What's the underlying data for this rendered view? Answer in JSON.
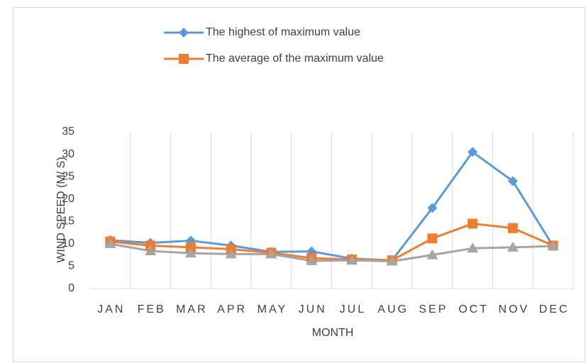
{
  "chart_data": {
    "type": "line",
    "x_label": "MONTH",
    "y_label": "WIND SPEED (M/ S)",
    "categories": [
      "JAN",
      "FEB",
      "MAR",
      "APR",
      "MAY",
      "JUN",
      "JUL",
      "AUG",
      "SEP",
      "OCT",
      "NOV",
      "DEC"
    ],
    "series": [
      {
        "name": "The highest of maximum value",
        "color": "#5b9bd5",
        "marker": "diamond",
        "values": [
          10.8,
          10.2,
          10.7,
          9.6,
          8.2,
          8.3,
          6.7,
          6.3,
          18,
          30.5,
          24,
          9.5
        ]
      },
      {
        "name": "The average of the maximum value",
        "color": "#ed7d31",
        "marker": "square",
        "values": [
          10.5,
          9.6,
          9.2,
          8.8,
          8.0,
          6.8,
          6.5,
          6.3,
          11.2,
          14.5,
          13.5,
          9.6
        ]
      },
      {
        "color": "#a5a5a5",
        "marker": "triangle",
        "values": [
          10.0,
          8.4,
          7.9,
          7.7,
          7.7,
          6.2,
          6.3,
          6.1,
          7.5,
          9.0,
          9.2,
          9.5
        ]
      }
    ],
    "ylim": [
      0,
      35
    ],
    "yticks": [
      0,
      5,
      10,
      15,
      20,
      25,
      30,
      35
    ],
    "grid": true,
    "legend": "top"
  }
}
